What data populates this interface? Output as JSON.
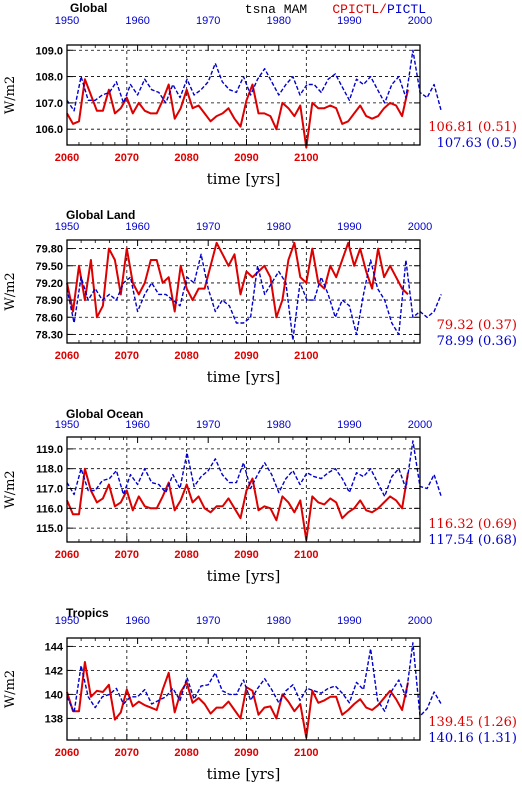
{
  "header": {
    "panel_title": "Global",
    "center_title": "tsna MAM",
    "legend_red": "CPICTL",
    "legend_sep": "/",
    "legend_blue": "PICTL"
  },
  "colors": {
    "red": "#dd0000",
    "blue": "#0000cc",
    "axis": "#000000"
  },
  "xaxis": {
    "bottom_ticks": [
      "2060",
      "2070",
      "2080",
      "2090",
      "2100"
    ],
    "top_ticks": [
      "1950",
      "1960",
      "1970",
      "1980",
      "1990",
      "2000"
    ],
    "label": "time [yrs]"
  },
  "chart_data": [
    {
      "type": "line",
      "title": "Global",
      "ylabel": "W/m2",
      "ylim": [
        105.4,
        109.2
      ],
      "yticks": [
        "106.0",
        "107.0",
        "108.0",
        "109.0"
      ],
      "ytick_values": [
        106.0,
        107.0,
        108.0,
        109.0
      ],
      "xlim_bottom": [
        2060,
        2119
      ],
      "xlim_top": [
        1950,
        2000
      ],
      "grid": true,
      "series": [
        {
          "color": "red",
          "x_axis": "bottom",
          "x_start": 2060,
          "values": [
            106.6,
            106.2,
            106.3,
            107.9,
            107.3,
            106.7,
            106.7,
            107.5,
            106.6,
            106.8,
            107.2,
            106.6,
            107.0,
            106.7,
            106.6,
            106.6,
            107.1,
            107.7,
            106.4,
            106.8,
            107.5,
            106.8,
            106.9,
            106.6,
            106.3,
            106.5,
            106.6,
            106.8,
            106.4,
            106.1,
            107.1,
            107.7,
            106.6,
            106.6,
            106.5,
            106.0,
            107.0,
            106.8,
            106.5,
            106.9,
            105.3,
            107.0,
            106.8,
            106.8,
            106.9,
            106.8,
            106.2,
            106.3,
            106.6,
            106.9,
            106.5,
            106.4,
            106.5,
            106.8,
            107.0,
            106.9,
            106.5,
            107.5
          ]
        },
        {
          "color": "blue",
          "x_axis": "top",
          "x_start": 1950,
          "values": [
            107.1,
            106.7,
            108.0,
            107.1,
            107.1,
            107.3,
            107.4,
            107.8,
            107.0,
            107.7,
            107.3,
            107.9,
            107.5,
            107.4,
            107.0,
            107.7,
            107.2,
            107.9,
            107.3,
            107.5,
            107.8,
            108.5,
            107.8,
            107.5,
            107.4,
            108.0,
            107.3,
            107.9,
            108.3,
            107.8,
            107.3,
            107.7,
            108.0,
            107.3,
            107.7,
            107.7,
            107.4,
            107.9,
            108.1,
            107.6,
            107.1,
            107.9,
            107.7,
            108.0,
            107.5,
            107.0,
            107.7,
            108.0,
            107.2,
            109.0,
            107.4,
            107.2,
            107.7,
            106.7
          ]
        }
      ],
      "stat_red": "106.81 (0.51)",
      "stat_blue": "107.63 (0.5)"
    },
    {
      "type": "line",
      "title": "Global Land",
      "ylabel": "W/m2",
      "ylim": [
        78.15,
        79.95
      ],
      "yticks": [
        "78.30",
        "78.60",
        "78.90",
        "79.20",
        "79.50",
        "79.80"
      ],
      "ytick_values": [
        78.3,
        78.6,
        78.9,
        79.2,
        79.5,
        79.8
      ],
      "xlim_bottom": [
        2060,
        2119
      ],
      "xlim_top": [
        1950,
        2000
      ],
      "grid": true,
      "series": [
        {
          "color": "red",
          "x_axis": "bottom",
          "x_start": 2060,
          "values": [
            79.2,
            78.7,
            79.5,
            78.9,
            79.6,
            78.6,
            78.8,
            79.8,
            79.6,
            79.0,
            79.8,
            79.2,
            79.0,
            79.2,
            79.6,
            79.6,
            79.2,
            79.3,
            78.7,
            79.5,
            79.1,
            78.9,
            79.1,
            79.1,
            79.5,
            79.9,
            79.7,
            79.5,
            79.7,
            79.0,
            79.4,
            79.3,
            79.4,
            79.5,
            79.3,
            78.6,
            78.9,
            79.6,
            79.9,
            79.3,
            79.2,
            79.8,
            79.2,
            79.1,
            79.5,
            79.3,
            79.6,
            79.9,
            79.5,
            79.8,
            79.4,
            79.1,
            79.8,
            79.3,
            79.5,
            79.3,
            79.1,
            79.0
          ]
        },
        {
          "color": "blue",
          "x_axis": "top",
          "x_start": 1950,
          "values": [
            79.1,
            78.5,
            79.3,
            78.9,
            79.1,
            78.9,
            79.0,
            78.9,
            79.2,
            79.3,
            78.7,
            79.0,
            79.2,
            79.0,
            79.0,
            78.9,
            78.8,
            79.3,
            79.2,
            79.7,
            79.1,
            78.7,
            78.9,
            78.8,
            78.5,
            78.5,
            78.6,
            79.5,
            79.0,
            79.2,
            79.4,
            79.2,
            78.2,
            79.2,
            78.9,
            78.9,
            79.3,
            79.0,
            78.6,
            78.9,
            78.8,
            78.3,
            79.0,
            79.6,
            79.1,
            78.9,
            78.5,
            78.3,
            79.6,
            78.6,
            78.7,
            78.6,
            78.7,
            79.0
          ]
        }
      ],
      "stat_red": "79.32 (0.37)",
      "stat_blue": "78.99 (0.36)"
    },
    {
      "type": "line",
      "title": "Global Ocean",
      "ylabel": "W/m2",
      "ylim": [
        114.3,
        119.6
      ],
      "yticks": [
        "115.0",
        "116.0",
        "117.0",
        "118.0",
        "119.0"
      ],
      "ytick_values": [
        115.0,
        116.0,
        117.0,
        118.0,
        119.0
      ],
      "xlim_bottom": [
        2060,
        2119
      ],
      "xlim_top": [
        1950,
        2000
      ],
      "grid": true,
      "series": [
        {
          "color": "red",
          "x_axis": "bottom",
          "x_start": 2060,
          "values": [
            116.4,
            115.7,
            115.7,
            118.0,
            116.9,
            116.3,
            116.5,
            117.2,
            116.1,
            116.3,
            116.9,
            115.9,
            116.6,
            116.1,
            116.0,
            116.0,
            116.6,
            117.3,
            115.9,
            116.4,
            117.2,
            116.3,
            116.6,
            116.0,
            115.8,
            116.1,
            116.1,
            116.5,
            116.0,
            115.5,
            116.9,
            117.5,
            115.9,
            116.1,
            116.0,
            115.4,
            116.6,
            116.3,
            115.8,
            116.4,
            114.4,
            116.6,
            116.3,
            116.2,
            116.5,
            116.3,
            115.5,
            115.8,
            116.0,
            116.4,
            115.9,
            115.8,
            116.0,
            116.3,
            116.6,
            116.4,
            116.0,
            117.8
          ]
        },
        {
          "color": "blue",
          "x_axis": "top",
          "x_start": 1950,
          "values": [
            117.3,
            116.7,
            118.0,
            116.9,
            116.9,
            117.4,
            117.5,
            117.9,
            116.7,
            117.7,
            117.2,
            118.0,
            117.3,
            117.2,
            116.8,
            117.7,
            117.0,
            118.8,
            117.1,
            117.6,
            117.9,
            118.5,
            117.7,
            117.3,
            117.3,
            118.3,
            117.0,
            117.7,
            118.3,
            117.7,
            116.8,
            117.5,
            117.9,
            117.2,
            117.8,
            117.6,
            117.5,
            117.8,
            118.0,
            117.5,
            116.8,
            117.8,
            117.6,
            118.0,
            117.3,
            116.6,
            117.6,
            118.0,
            117.0,
            119.4,
            117.1,
            117.0,
            117.7,
            116.6
          ]
        }
      ],
      "stat_red": "116.32 (0.69)",
      "stat_blue": "117.54 (0.68)"
    },
    {
      "type": "line",
      "title": "Tropics",
      "ylabel": "W/m2",
      "ylim": [
        136.2,
        144.7
      ],
      "yticks": [
        "138",
        "140",
        "142",
        "144"
      ],
      "ytick_values": [
        138,
        140,
        142,
        144
      ],
      "xlim_bottom": [
        2060,
        2119
      ],
      "xlim_top": [
        1950,
        2000
      ],
      "grid": true,
      "series": [
        {
          "color": "red",
          "x_axis": "bottom",
          "x_start": 2060,
          "values": [
            140.2,
            138.6,
            138.6,
            142.7,
            139.8,
            140.3,
            140.2,
            140.8,
            137.9,
            138.5,
            140.4,
            139.0,
            139.4,
            139.1,
            138.9,
            138.7,
            140.4,
            141.8,
            138.5,
            140.2,
            141.0,
            139.3,
            139.7,
            139.2,
            138.4,
            138.9,
            138.9,
            139.4,
            138.7,
            138.0,
            140.6,
            140.3,
            138.3,
            138.9,
            139.0,
            138.0,
            140.0,
            139.4,
            138.6,
            139.2,
            136.4,
            140.3,
            139.3,
            139.5,
            139.8,
            139.8,
            138.3,
            138.7,
            139.2,
            139.6,
            138.9,
            138.7,
            139.1,
            139.7,
            140.3,
            139.6,
            138.7,
            141.0
          ]
        },
        {
          "color": "blue",
          "x_axis": "top",
          "x_start": 1950,
          "values": [
            139.8,
            138.5,
            142.4,
            139.8,
            138.9,
            139.8,
            140.0,
            140.5,
            139.2,
            139.8,
            139.8,
            140.4,
            139.2,
            139.5,
            139.8,
            140.5,
            139.5,
            141.4,
            139.6,
            140.7,
            140.8,
            141.8,
            140.3,
            140.0,
            140.0,
            141.2,
            139.5,
            140.5,
            141.3,
            140.4,
            139.3,
            140.3,
            140.8,
            139.5,
            140.5,
            140.3,
            140.1,
            140.5,
            140.7,
            140.1,
            139.3,
            141.0,
            140.4,
            143.8,
            139.5,
            138.6,
            140.3,
            141.2,
            139.8,
            144.3,
            138.2,
            138.8,
            140.2,
            139.2
          ]
        }
      ],
      "stat_red": "139.45 (1.26)",
      "stat_blue": "140.16 (1.31)"
    }
  ]
}
